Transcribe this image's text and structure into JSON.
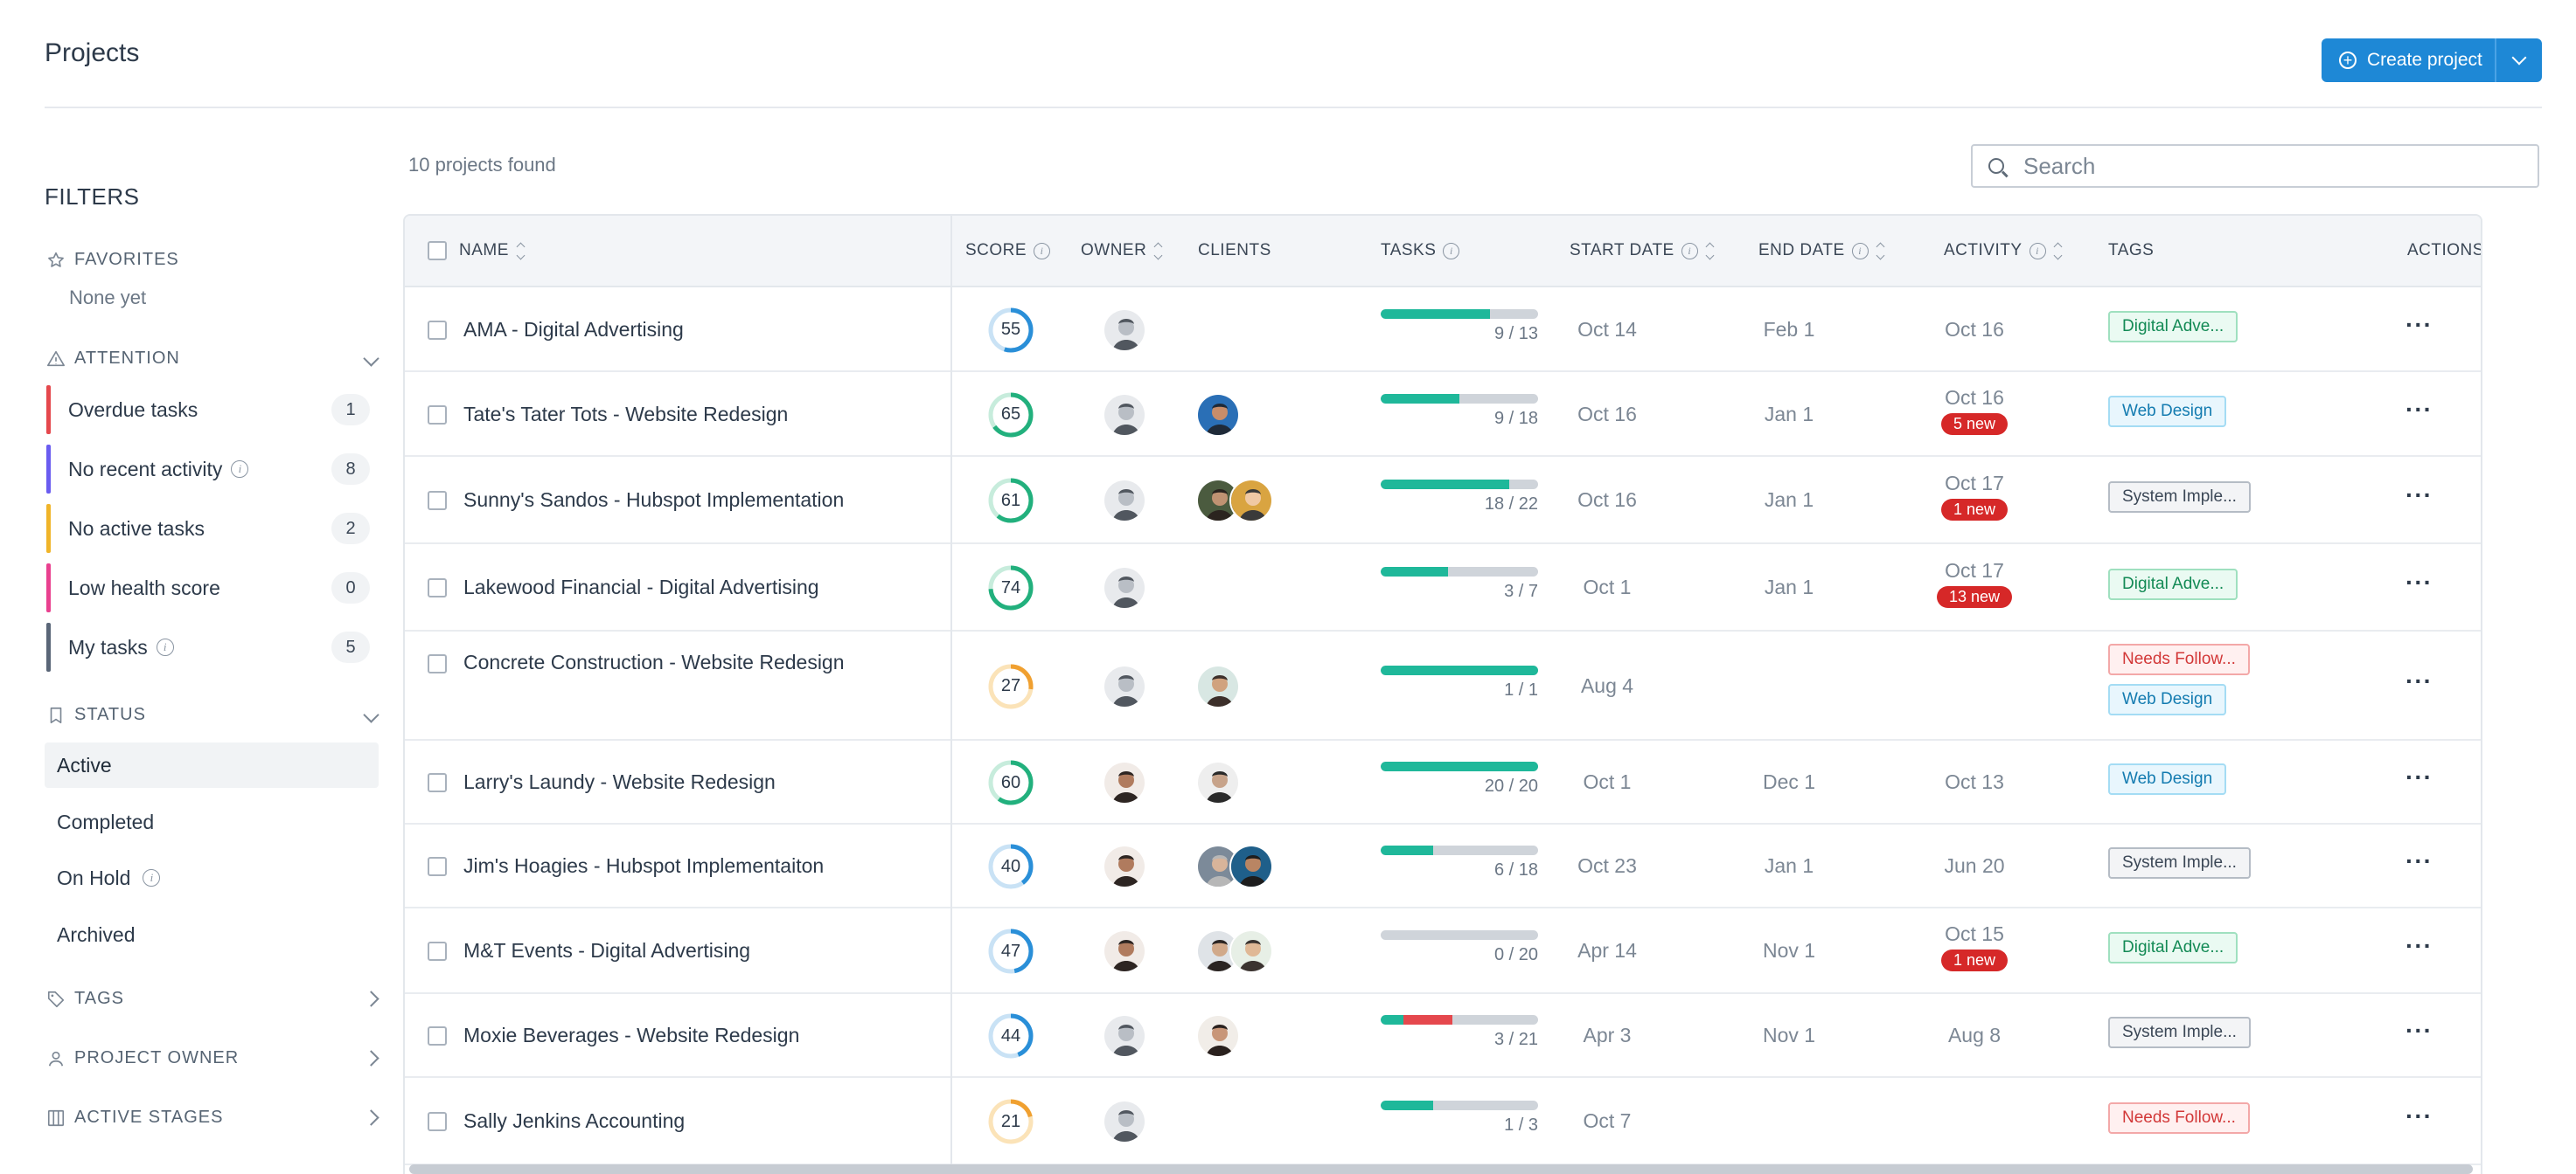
{
  "header": {
    "title": "Projects",
    "create_label": "Create project"
  },
  "sidebar": {
    "filters_title": "FILTERS",
    "favorites": {
      "label": "FAVORITES",
      "empty": "None yet"
    },
    "attention": {
      "label": "ATTENTION",
      "items": [
        {
          "label": "Overdue tasks",
          "count": "1",
          "color": "#e5484d"
        },
        {
          "label": "No recent activity",
          "count": "8",
          "color": "#6a5cf0"
        },
        {
          "label": "No active tasks",
          "count": "2",
          "color": "#f0b429"
        },
        {
          "label": "Low health score",
          "count": "0",
          "color": "#e9408f"
        },
        {
          "label": "My tasks",
          "count": "5",
          "color": "#5a6678"
        }
      ]
    },
    "status": {
      "label": "STATUS",
      "items": [
        {
          "label": "Active",
          "selected": true
        },
        {
          "label": "Completed"
        },
        {
          "label": "On Hold"
        },
        {
          "label": "Archived"
        }
      ]
    },
    "tags_label": "TAGS",
    "owner_label": "PROJECT OWNER",
    "stages_label": "ACTIVE STAGES"
  },
  "main": {
    "found_text": "10 projects found",
    "search_placeholder": "Search",
    "columns": {
      "name": "NAME",
      "score": "SCORE",
      "owner": "OWNER",
      "clients": "CLIENTS",
      "tasks": "TASKS",
      "start": "START DATE",
      "end": "END DATE",
      "activity": "ACTIVITY",
      "tags": "TAGS",
      "actions": "ACTIONS"
    },
    "rows": [
      {
        "name": "AMA - Digital Advertising",
        "score": "55",
        "score_color": "#2a8fd8",
        "tasks": "9 / 13",
        "done": 9,
        "total": 13,
        "start": "Oct 14",
        "end": "Feb 1",
        "activity": "Oct 16",
        "new": "",
        "tags": [
          {
            "label": "Digital Adve...",
            "kind": "green"
          }
        ]
      },
      {
        "name": "Tate's Tater Tots - Website Redesign",
        "score": "65",
        "score_color": "#22b07d",
        "tasks": "9 / 18",
        "done": 9,
        "total": 18,
        "start": "Oct 16",
        "end": "Jan 1",
        "activity": "Oct 16",
        "new": "5 new",
        "tags": [
          {
            "label": "Web Design",
            "kind": "blue"
          }
        ]
      },
      {
        "name": "Sunny's Sandos - Hubspot Implementation",
        "score": "61",
        "score_color": "#22b07d",
        "tasks": "18 / 22",
        "done": 18,
        "total": 22,
        "start": "Oct 16",
        "end": "Jan 1",
        "activity": "Oct 17",
        "new": "1 new",
        "tags": [
          {
            "label": "System Imple...",
            "kind": "gray"
          }
        ]
      },
      {
        "name": "Lakewood Financial - Digital Advertising",
        "score": "74",
        "score_color": "#22b07d",
        "tasks": "3 / 7",
        "done": 3,
        "total": 7,
        "start": "Oct 1",
        "end": "Jan 1",
        "activity": "Oct 17",
        "new": "13 new",
        "tags": [
          {
            "label": "Digital Adve...",
            "kind": "green"
          }
        ]
      },
      {
        "name": "Concrete Construction - Website Redesign",
        "score": "27",
        "score_color": "#f0a030",
        "tasks": "1 / 1",
        "done": 1,
        "total": 1,
        "start": "Aug 4",
        "end": "",
        "activity": "",
        "new": "",
        "tags": [
          {
            "label": "Needs Follow...",
            "kind": "red"
          },
          {
            "label": "Web Design",
            "kind": "blue"
          }
        ]
      },
      {
        "name": "Larry's Laundy - Website Redesign",
        "score": "60",
        "score_color": "#22b07d",
        "tasks": "20 / 20",
        "done": 20,
        "total": 20,
        "start": "Oct 1",
        "end": "Dec 1",
        "activity": "Oct 13",
        "new": "",
        "tags": [
          {
            "label": "Web Design",
            "kind": "blue"
          }
        ]
      },
      {
        "name": "Jim's Hoagies - Hubspot Implementaiton",
        "score": "40",
        "score_color": "#2a8fd8",
        "tasks": "6 / 18",
        "done": 6,
        "total": 18,
        "start": "Oct 23",
        "end": "Jan 1",
        "activity": "Jun 20",
        "new": "",
        "tags": [
          {
            "label": "System Imple...",
            "kind": "gray"
          }
        ]
      },
      {
        "name": "M&T Events - Digital Advertising",
        "score": "47",
        "score_color": "#2a8fd8",
        "tasks": "0 / 20",
        "done": 0,
        "total": 20,
        "start": "Apr 14",
        "end": "Nov 1",
        "activity": "Oct 15",
        "new": "1 new",
        "tags": [
          {
            "label": "Digital Adve...",
            "kind": "green"
          }
        ]
      },
      {
        "name": "Moxie Beverages - Website Redesign",
        "score": "44",
        "score_color": "#2a8fd8",
        "tasks": "3 / 21",
        "done": 3,
        "total": 21,
        "start": "Apr 3",
        "end": "Nov 1",
        "activity": "Aug 8",
        "new": "",
        "overdue": true,
        "tags": [
          {
            "label": "System Imple...",
            "kind": "gray"
          }
        ]
      },
      {
        "name": "Sally Jenkins Accounting",
        "score": "21",
        "score_color": "#f0a030",
        "tasks": "1 / 3",
        "done": 1,
        "total": 3,
        "start": "Oct 7",
        "end": "",
        "activity": "",
        "new": "",
        "tags": [
          {
            "label": "Needs Follow...",
            "kind": "red"
          }
        ]
      }
    ]
  }
}
